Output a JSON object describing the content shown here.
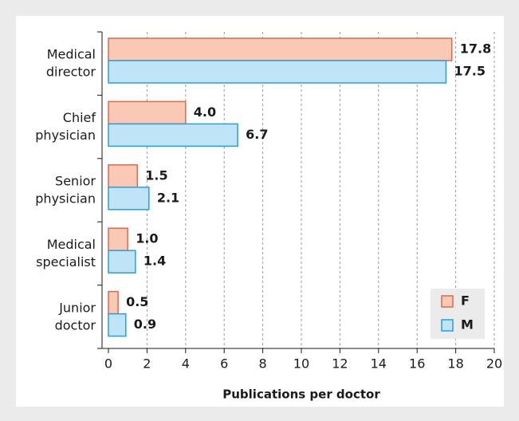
{
  "chart_data": {
    "type": "barh",
    "xlabel": "Publications per doctor",
    "categories": [
      "Medical director",
      "Chief physician",
      "Senior physician",
      "Medical specialist",
      "Junior doctor"
    ],
    "series": [
      {
        "name": "F",
        "color": "#f9c9b5",
        "edge": "#e0694a",
        "values": [
          17.8,
          4.0,
          1.5,
          1.0,
          0.5
        ],
        "value_labels": [
          "17.8",
          "4.0",
          "1.5",
          "1.0",
          "0.5"
        ]
      },
      {
        "name": "M",
        "color": "#bfe3f7",
        "edge": "#2a9fd6",
        "values": [
          17.5,
          6.7,
          2.1,
          1.4,
          0.9
        ],
        "value_labels": [
          "17.5",
          "6.7",
          "2.1",
          "1.4",
          "0.9"
        ]
      }
    ],
    "xlim": [
      0,
      20
    ],
    "xticks": [
      0,
      2,
      4,
      6,
      8,
      10,
      12,
      14,
      16,
      18,
      20
    ],
    "grid": true,
    "legend": "lower right"
  }
}
